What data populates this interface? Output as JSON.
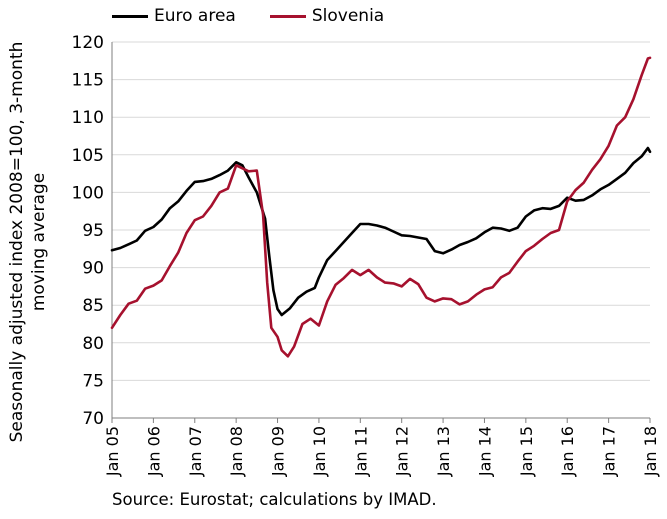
{
  "chart_data": {
    "type": "line",
    "xlabel": "",
    "ylabel": "Seasonally adjusted index 2008=100, 3-month moving average",
    "ylabel_lines": [
      "Seasonally adjusted index 2008=100, 3-month",
      "moving average"
    ],
    "ylim": [
      70,
      120
    ],
    "yticks": [
      70,
      75,
      80,
      85,
      90,
      95,
      100,
      105,
      110,
      115,
      120
    ],
    "xlim": [
      2005,
      2018
    ],
    "xtick_labels": [
      "Jan 05",
      "Jan 06",
      "Jan 07",
      "Jan 08",
      "Jan 09",
      "Jan 10",
      "Jan 11",
      "Jan 12",
      "Jan 13",
      "Jan 14",
      "Jan 15",
      "Jan 16",
      "Jan 17",
      "Jan 18"
    ],
    "grid": true,
    "legend_position": "top-left",
    "series": [
      {
        "name": "Euro area",
        "color": "#000000",
        "points": [
          [
            2005.0,
            92.3
          ],
          [
            2005.2,
            92.6
          ],
          [
            2005.4,
            93.1
          ],
          [
            2005.6,
            93.6
          ],
          [
            2005.8,
            94.9
          ],
          [
            2006.0,
            95.4
          ],
          [
            2006.2,
            96.4
          ],
          [
            2006.4,
            97.9
          ],
          [
            2006.6,
            98.8
          ],
          [
            2006.8,
            100.2
          ],
          [
            2007.0,
            101.4
          ],
          [
            2007.2,
            101.5
          ],
          [
            2007.4,
            101.8
          ],
          [
            2007.6,
            102.3
          ],
          [
            2007.8,
            102.9
          ],
          [
            2008.0,
            104.0
          ],
          [
            2008.15,
            103.6
          ],
          [
            2008.3,
            102.0
          ],
          [
            2008.5,
            100.0
          ],
          [
            2008.7,
            96.5
          ],
          [
            2008.8,
            91.5
          ],
          [
            2008.9,
            87.0
          ],
          [
            2009.0,
            84.5
          ],
          [
            2009.1,
            83.7
          ],
          [
            2009.3,
            84.6
          ],
          [
            2009.5,
            86.0
          ],
          [
            2009.7,
            86.8
          ],
          [
            2009.9,
            87.3
          ],
          [
            2010.0,
            88.7
          ],
          [
            2010.2,
            91.0
          ],
          [
            2010.4,
            92.2
          ],
          [
            2010.6,
            93.4
          ],
          [
            2010.8,
            94.6
          ],
          [
            2011.0,
            95.8
          ],
          [
            2011.2,
            95.8
          ],
          [
            2011.4,
            95.6
          ],
          [
            2011.6,
            95.3
          ],
          [
            2011.8,
            94.8
          ],
          [
            2012.0,
            94.3
          ],
          [
            2012.2,
            94.2
          ],
          [
            2012.4,
            94.0
          ],
          [
            2012.6,
            93.8
          ],
          [
            2012.8,
            92.2
          ],
          [
            2013.0,
            91.9
          ],
          [
            2013.2,
            92.4
          ],
          [
            2013.4,
            93.0
          ],
          [
            2013.6,
            93.4
          ],
          [
            2013.8,
            93.9
          ],
          [
            2014.0,
            94.7
          ],
          [
            2014.2,
            95.3
          ],
          [
            2014.4,
            95.2
          ],
          [
            2014.6,
            94.9
          ],
          [
            2014.8,
            95.3
          ],
          [
            2015.0,
            96.8
          ],
          [
            2015.2,
            97.6
          ],
          [
            2015.4,
            97.9
          ],
          [
            2015.6,
            97.8
          ],
          [
            2015.8,
            98.2
          ],
          [
            2016.0,
            99.3
          ],
          [
            2016.2,
            98.9
          ],
          [
            2016.4,
            99.0
          ],
          [
            2016.6,
            99.6
          ],
          [
            2016.8,
            100.4
          ],
          [
            2017.0,
            101.0
          ],
          [
            2017.2,
            101.8
          ],
          [
            2017.4,
            102.6
          ],
          [
            2017.6,
            103.9
          ],
          [
            2017.8,
            104.8
          ],
          [
            2017.95,
            105.9
          ],
          [
            2018.0,
            105.4
          ]
        ]
      },
      {
        "name": "Slovenia",
        "color": "#a6112e",
        "points": [
          [
            2005.0,
            82.0
          ],
          [
            2005.2,
            83.7
          ],
          [
            2005.4,
            85.2
          ],
          [
            2005.6,
            85.6
          ],
          [
            2005.8,
            87.2
          ],
          [
            2006.0,
            87.6
          ],
          [
            2006.2,
            88.3
          ],
          [
            2006.4,
            90.2
          ],
          [
            2006.6,
            92.0
          ],
          [
            2006.8,
            94.6
          ],
          [
            2007.0,
            96.3
          ],
          [
            2007.2,
            96.8
          ],
          [
            2007.4,
            98.2
          ],
          [
            2007.6,
            100.0
          ],
          [
            2007.8,
            100.5
          ],
          [
            2008.0,
            103.6
          ],
          [
            2008.15,
            103.2
          ],
          [
            2008.3,
            102.8
          ],
          [
            2008.5,
            102.9
          ],
          [
            2008.65,
            97.0
          ],
          [
            2008.75,
            88.0
          ],
          [
            2008.85,
            82.0
          ],
          [
            2009.0,
            80.8
          ],
          [
            2009.1,
            79.0
          ],
          [
            2009.25,
            78.2
          ],
          [
            2009.4,
            79.5
          ],
          [
            2009.6,
            82.5
          ],
          [
            2009.8,
            83.2
          ],
          [
            2010.0,
            82.3
          ],
          [
            2010.2,
            85.5
          ],
          [
            2010.4,
            87.7
          ],
          [
            2010.6,
            88.6
          ],
          [
            2010.8,
            89.7
          ],
          [
            2011.0,
            89.0
          ],
          [
            2011.2,
            89.7
          ],
          [
            2011.4,
            88.7
          ],
          [
            2011.6,
            88.0
          ],
          [
            2011.8,
            87.9
          ],
          [
            2012.0,
            87.5
          ],
          [
            2012.2,
            88.5
          ],
          [
            2012.4,
            87.8
          ],
          [
            2012.6,
            86.0
          ],
          [
            2012.8,
            85.5
          ],
          [
            2013.0,
            85.9
          ],
          [
            2013.2,
            85.8
          ],
          [
            2013.4,
            85.1
          ],
          [
            2013.6,
            85.5
          ],
          [
            2013.8,
            86.4
          ],
          [
            2014.0,
            87.1
          ],
          [
            2014.2,
            87.4
          ],
          [
            2014.4,
            88.7
          ],
          [
            2014.6,
            89.3
          ],
          [
            2014.8,
            90.8
          ],
          [
            2015.0,
            92.2
          ],
          [
            2015.2,
            92.9
          ],
          [
            2015.4,
            93.8
          ],
          [
            2015.6,
            94.6
          ],
          [
            2015.8,
            95.0
          ],
          [
            2016.0,
            98.8
          ],
          [
            2016.2,
            100.3
          ],
          [
            2016.4,
            101.3
          ],
          [
            2016.6,
            103.0
          ],
          [
            2016.8,
            104.4
          ],
          [
            2017.0,
            106.2
          ],
          [
            2017.2,
            108.9
          ],
          [
            2017.4,
            110.0
          ],
          [
            2017.6,
            112.4
          ],
          [
            2017.8,
            115.6
          ],
          [
            2017.95,
            117.8
          ],
          [
            2018.0,
            117.9
          ]
        ]
      }
    ]
  },
  "source": "Source: Eurostat; calculations by IMAD."
}
